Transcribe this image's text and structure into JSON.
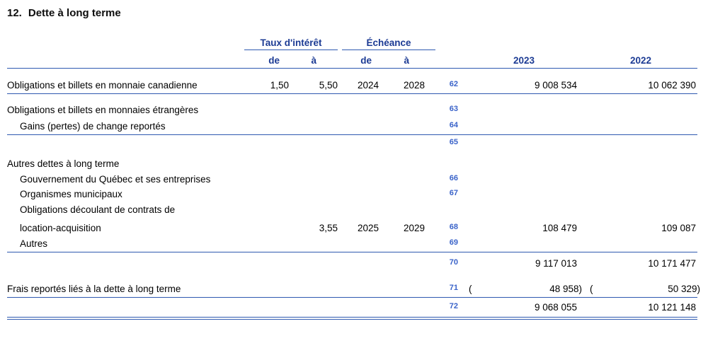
{
  "title": {
    "number": "12.",
    "text": "Dette à long terme"
  },
  "table": {
    "col_headers": {
      "taux_group": "Taux d'intérêt",
      "echeance_group": "Échéance",
      "taux_de": "de",
      "taux_a": "à",
      "echeance_de": "de",
      "echeance_a": "à",
      "year_2023": "2023",
      "year_2022": "2022"
    },
    "rows": [
      {
        "num": "62",
        "label": "Obligations et billets en monnaie canadienne",
        "taux_de": "1,50",
        "taux_a": "5,50",
        "ech_de": "2024",
        "ech_a": "2028",
        "v2023": "9 008 534",
        "v2022": "10 062 390"
      },
      {
        "num": "63",
        "label": "Obligations et billets en monnaies étrangères"
      },
      {
        "num": "64",
        "label": "Gains (pertes) de change reportés"
      },
      {
        "num": "65",
        "label": ""
      },
      {
        "label": "Autres dettes à long terme"
      },
      {
        "num": "66",
        "label": "Gouvernement du Québec et ses entreprises"
      },
      {
        "num": "67",
        "label": "Organismes municipaux"
      },
      {
        "label": "Obligations découlant de contrats de"
      },
      {
        "num": "68",
        "label": "location-acquisition",
        "taux_a": "3,55",
        "ech_de": "2025",
        "ech_a": "2029",
        "v2023": "108 479",
        "v2022": "109 087"
      },
      {
        "num": "69",
        "label": "Autres"
      },
      {
        "num": "70",
        "v2023": "9 117 013",
        "v2022": "10 171 477"
      },
      {
        "num": "71",
        "label": "Frais reportés liés à la dette à long terme",
        "open_paren": "(",
        "v2023": "48 958)",
        "v2022": "50 329)"
      },
      {
        "num": "72",
        "v2023": "9 068 055",
        "v2022": "10 121 148"
      }
    ]
  }
}
